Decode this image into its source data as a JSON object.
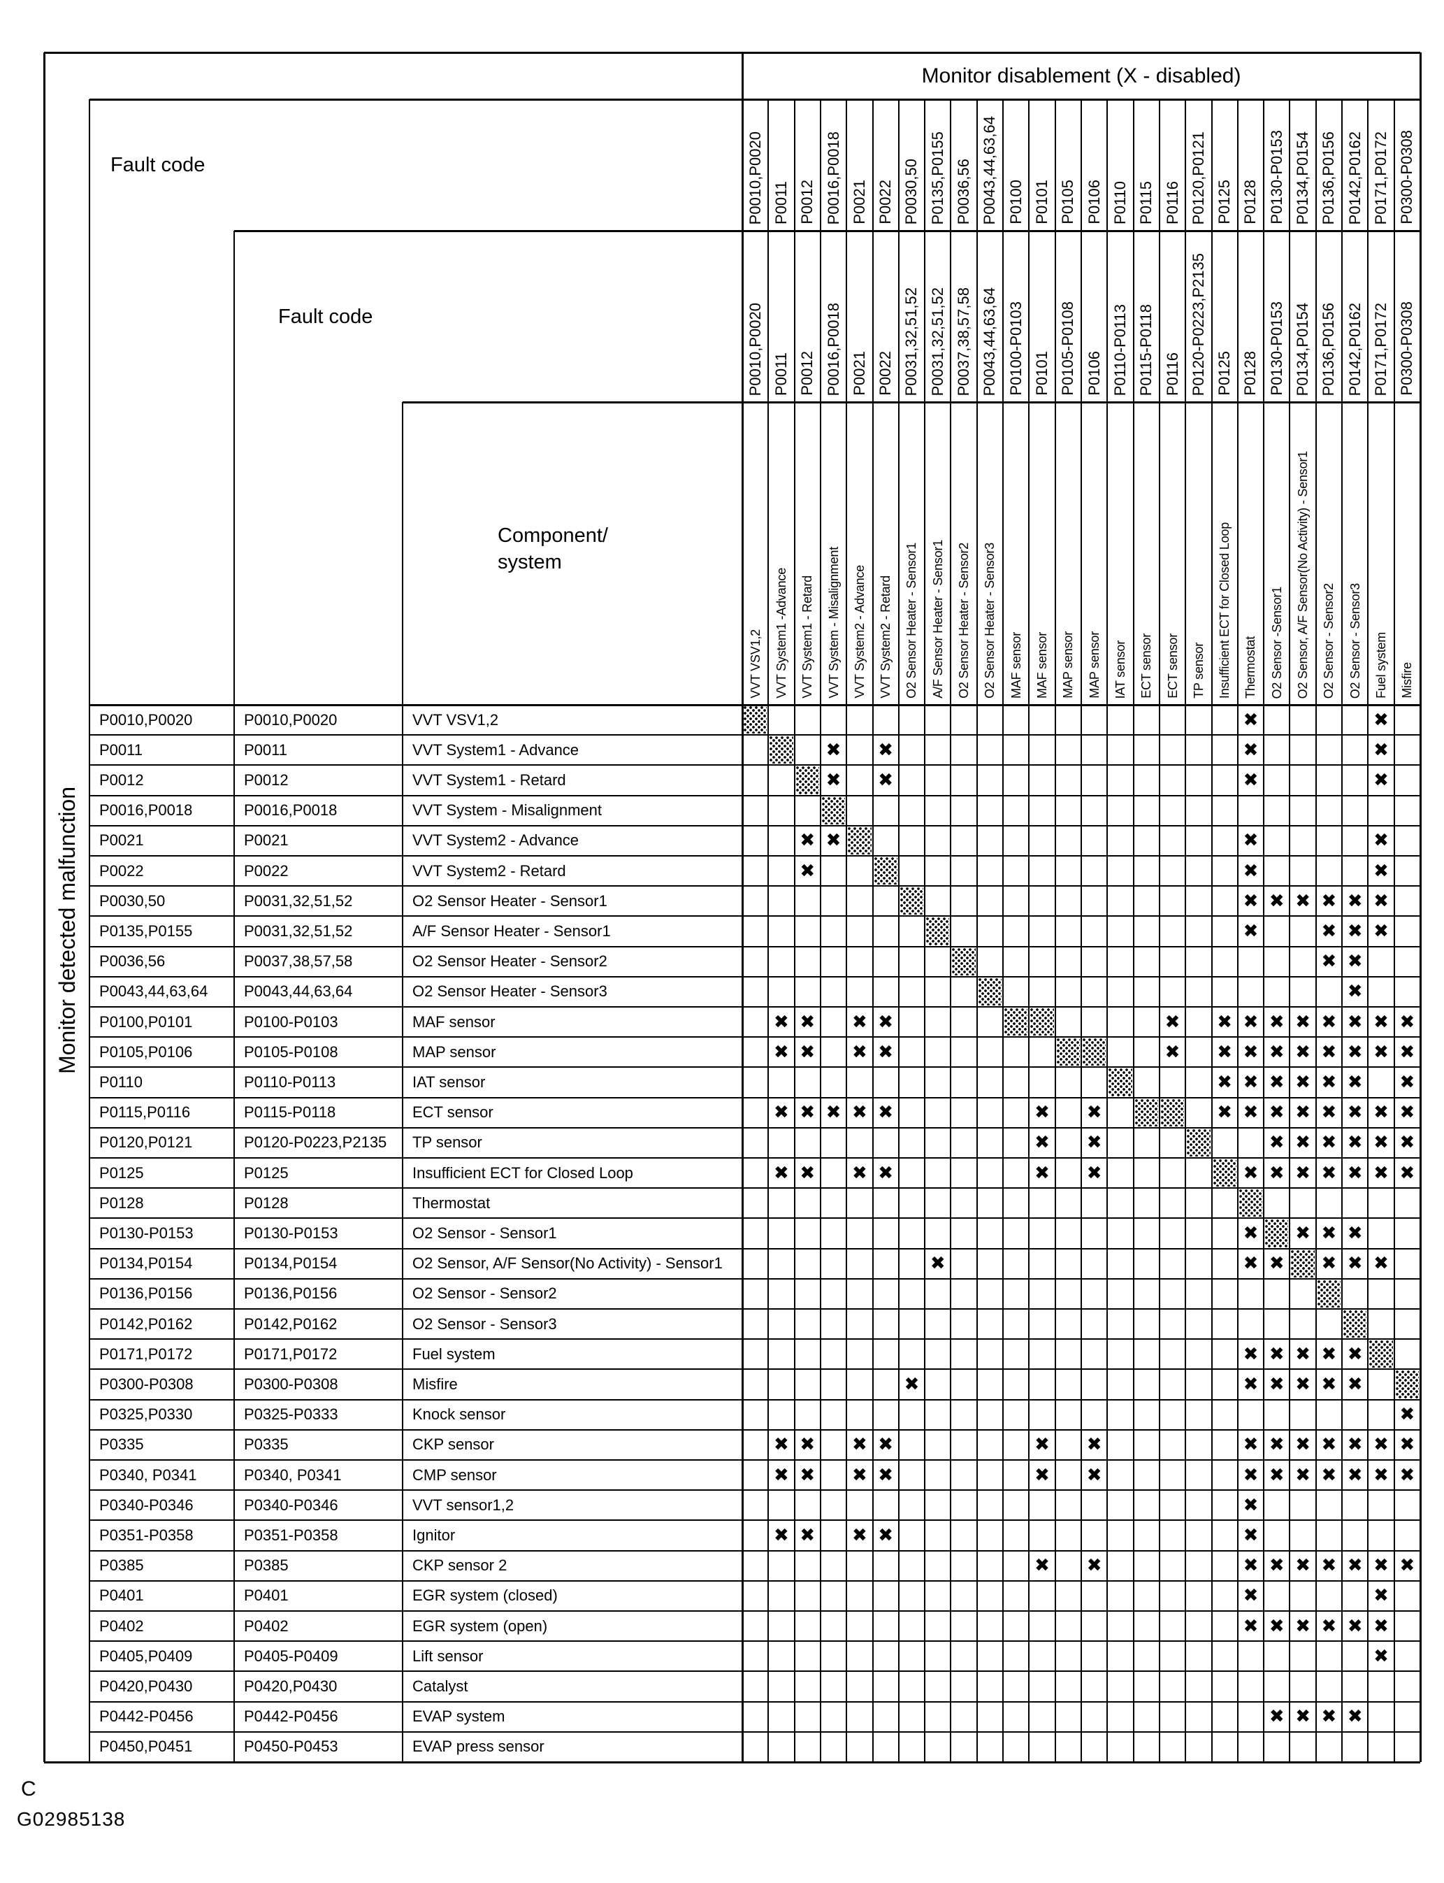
{
  "page": {
    "corner_label": "C",
    "figure_code": "G02985138",
    "background_color": "#ffffff",
    "ink_color": "#000000"
  },
  "table": {
    "title": "Monitor disablement (X - disabled)",
    "left_axis_label": "Monitor detected malfunction",
    "fault_code_label_outer": "Fault code",
    "fault_code_label_inner": "Fault code",
    "component_label_line1": "Component/",
    "component_label_line2": "system",
    "x_mark_glyph": "✖",
    "columns": [
      {
        "code_row1": "P0010,P0020",
        "code_row2": "P0010,P0020",
        "component": "VVT VSV1,2"
      },
      {
        "code_row1": "P0011",
        "code_row2": "P0011",
        "component": "VVT System1 -Advance"
      },
      {
        "code_row1": "P0012",
        "code_row2": "P0012",
        "component": "VVT System1 - Retard"
      },
      {
        "code_row1": "P0016,P0018",
        "code_row2": "P0016,P0018",
        "component": "VVT System - Misalignment"
      },
      {
        "code_row1": "P0021",
        "code_row2": "P0021",
        "component": "VVT System2 - Advance"
      },
      {
        "code_row1": "P0022",
        "code_row2": "P0022",
        "component": "VVT System2 - Retard"
      },
      {
        "code_row1": "P0030,50",
        "code_row2": "P0031,32,51,52",
        "component": "O2 Sensor  Heater - Sensor1"
      },
      {
        "code_row1": "P0135,P0155",
        "code_row2": "P0031,32,51,52",
        "component": "A/F Sensor Heater - Sensor1"
      },
      {
        "code_row1": "P0036,56",
        "code_row2": "P0037,38,57,58",
        "component": "O2 Sensor Heater - Sensor2"
      },
      {
        "code_row1": "P0043,44,63,64",
        "code_row2": "P0043,44,63,64",
        "component": "O2 Sensor Heater  - Sensor3"
      },
      {
        "code_row1": "P0100",
        "code_row2": "P0100-P0103",
        "component": "MAF sensor"
      },
      {
        "code_row1": "P0101",
        "code_row2": "P0101",
        "component": "MAF sensor"
      },
      {
        "code_row1": "P0105",
        "code_row2": "P0105-P0108",
        "component": "MAP sensor"
      },
      {
        "code_row1": "P0106",
        "code_row2": "P0106",
        "component": "MAP sensor"
      },
      {
        "code_row1": "P0110",
        "code_row2": "P0110-P0113",
        "component": "IAT sensor"
      },
      {
        "code_row1": "P0115",
        "code_row2": "P0115-P0118",
        "component": "ECT sensor"
      },
      {
        "code_row1": "P0116",
        "code_row2": "P0116",
        "component": "ECT sensor"
      },
      {
        "code_row1": "P0120,P0121",
        "code_row2": "P0120-P0223,P2135",
        "component": "TP sensor"
      },
      {
        "code_row1": "P0125",
        "code_row2": "P0125",
        "component": "Insufficient ECT for Closed Loop"
      },
      {
        "code_row1": "P0128",
        "code_row2": "P0128",
        "component": "Thermostat"
      },
      {
        "code_row1": "P0130-P0153",
        "code_row2": "P0130-P0153",
        "component": "O2 Sensor -Sensor1"
      },
      {
        "code_row1": "P0134,P0154",
        "code_row2": "P0134,P0154",
        "component": "O2 Sensor, A/F Sensor(No Activity) - Sensor1"
      },
      {
        "code_row1": "P0136,P0156",
        "code_row2": "P0136,P0156",
        "component": "O2 Sensor - Sensor2"
      },
      {
        "code_row1": "P0142,P0162",
        "code_row2": "P0142,P0162",
        "component": "O2 Sensor - Sensor3"
      },
      {
        "code_row1": "P0171,P0172",
        "code_row2": "P0171,P0172",
        "component": "Fuel system"
      },
      {
        "code_row1": "P0300-P0308",
        "code_row2": "P0300-P0308",
        "component": "Misfire"
      }
    ],
    "rows": [
      {
        "fault_code_1": "P0010,P0020",
        "fault_code_2": "P0010,P0020",
        "component": "VVT VSV1,2",
        "hatch_cols": [
          1
        ],
        "x_cols": [
          20,
          25
        ]
      },
      {
        "fault_code_1": "P0011",
        "fault_code_2": "P0011",
        "component": "VVT System1 - Advance",
        "hatch_cols": [
          2
        ],
        "x_cols": [
          4,
          6,
          20,
          25
        ]
      },
      {
        "fault_code_1": "P0012",
        "fault_code_2": "P0012",
        "component": "VVT System1 - Retard",
        "hatch_cols": [
          3
        ],
        "x_cols": [
          4,
          6,
          20,
          25
        ]
      },
      {
        "fault_code_1": "P0016,P0018",
        "fault_code_2": "P0016,P0018",
        "component": "VVT System - Misalignment",
        "hatch_cols": [
          4
        ],
        "x_cols": []
      },
      {
        "fault_code_1": "P0021",
        "fault_code_2": "P0021",
        "component": "VVT System2 - Advance",
        "hatch_cols": [
          5
        ],
        "x_cols": [
          3,
          4,
          20,
          25
        ]
      },
      {
        "fault_code_1": "P0022",
        "fault_code_2": "P0022",
        "component": "VVT System2 - Retard",
        "hatch_cols": [
          6
        ],
        "x_cols": [
          3,
          20,
          25
        ]
      },
      {
        "fault_code_1": "P0030,50",
        "fault_code_2": "P0031,32,51,52",
        "component": "O2 Sensor Heater - Sensor1",
        "hatch_cols": [
          7
        ],
        "x_cols": [
          20,
          21,
          22,
          23,
          24,
          25
        ]
      },
      {
        "fault_code_1": "P0135,P0155",
        "fault_code_2": "P0031,32,51,52",
        "component": "A/F Sensor Heater  - Sensor1",
        "hatch_cols": [
          8
        ],
        "x_cols": [
          20,
          23,
          24,
          25
        ]
      },
      {
        "fault_code_1": "P0036,56",
        "fault_code_2": "P0037,38,57,58",
        "component": "O2 Sensor Heater - Sensor2",
        "hatch_cols": [
          9
        ],
        "x_cols": [
          23,
          24
        ]
      },
      {
        "fault_code_1": "P0043,44,63,64",
        "fault_code_2": "P0043,44,63,64",
        "component": "O2 Sensor Heater - Sensor3",
        "hatch_cols": [
          10
        ],
        "x_cols": [
          24
        ]
      },
      {
        "fault_code_1": "P0100,P0101",
        "fault_code_2": "P0100-P0103",
        "component": "MAF sensor",
        "hatch_cols": [
          11,
          12
        ],
        "x_cols": [
          2,
          3,
          5,
          6,
          17,
          19,
          20,
          21,
          22,
          23,
          24,
          25,
          26
        ]
      },
      {
        "fault_code_1": "P0105,P0106",
        "fault_code_2": "P0105-P0108",
        "component": "MAP sensor",
        "hatch_cols": [
          13,
          14
        ],
        "x_cols": [
          2,
          3,
          5,
          6,
          17,
          19,
          20,
          21,
          22,
          23,
          24,
          25,
          26
        ]
      },
      {
        "fault_code_1": "P0110",
        "fault_code_2": "P0110-P0113",
        "component": "IAT sensor",
        "hatch_cols": [
          15
        ],
        "x_cols": [
          19,
          20,
          21,
          22,
          23,
          24,
          26
        ]
      },
      {
        "fault_code_1": "P0115,P0116",
        "fault_code_2": "P0115-P0118",
        "component": "ECT sensor",
        "hatch_cols": [
          16,
          17
        ],
        "x_cols": [
          2,
          3,
          4,
          5,
          6,
          12,
          14,
          19,
          20,
          21,
          22,
          23,
          24,
          25,
          26
        ]
      },
      {
        "fault_code_1": "P0120,P0121",
        "fault_code_2": "P0120-P0223,P2135",
        "component": "TP sensor",
        "hatch_cols": [
          18
        ],
        "x_cols": [
          12,
          14,
          21,
          22,
          23,
          24,
          25,
          26
        ]
      },
      {
        "fault_code_1": "P0125",
        "fault_code_2": "P0125",
        "component": "Insufficient ECT for Closed Loop",
        "hatch_cols": [
          19
        ],
        "x_cols": [
          2,
          3,
          5,
          6,
          12,
          14,
          20,
          21,
          22,
          23,
          24,
          25,
          26
        ]
      },
      {
        "fault_code_1": "P0128",
        "fault_code_2": "P0128",
        "component": "Thermostat",
        "hatch_cols": [
          20
        ],
        "x_cols": []
      },
      {
        "fault_code_1": "P0130-P0153",
        "fault_code_2": "P0130-P0153",
        "component": "O2 Sensor - Sensor1",
        "hatch_cols": [
          21
        ],
        "x_cols": [
          20,
          22,
          23,
          24
        ]
      },
      {
        "fault_code_1": "P0134,P0154",
        "fault_code_2": "P0134,P0154",
        "component": "O2 Sensor, A/F Sensor(No Activity) - Sensor1",
        "hatch_cols": [
          22
        ],
        "x_cols": [
          8,
          20,
          21,
          23,
          24,
          25
        ]
      },
      {
        "fault_code_1": "P0136,P0156",
        "fault_code_2": "P0136,P0156",
        "component": "O2 Sensor - Sensor2",
        "hatch_cols": [
          23
        ],
        "x_cols": []
      },
      {
        "fault_code_1": "P0142,P0162",
        "fault_code_2": "P0142,P0162",
        "component": "O2 Sensor - Sensor3",
        "hatch_cols": [
          24
        ],
        "x_cols": []
      },
      {
        "fault_code_1": "P0171,P0172",
        "fault_code_2": "P0171,P0172",
        "component": "Fuel system",
        "hatch_cols": [
          25
        ],
        "x_cols": [
          20,
          21,
          22,
          23,
          24
        ]
      },
      {
        "fault_code_1": "P0300-P0308",
        "fault_code_2": "P0300-P0308",
        "component": "Misfire",
        "hatch_cols": [
          26
        ],
        "x_cols": [
          7,
          20,
          21,
          22,
          23,
          24
        ]
      },
      {
        "fault_code_1": "P0325,P0330",
        "fault_code_2": "P0325-P0333",
        "component": "Knock sensor",
        "hatch_cols": [],
        "x_cols": [
          26
        ]
      },
      {
        "fault_code_1": "P0335",
        "fault_code_2": "P0335",
        "component": "CKP sensor",
        "hatch_cols": [],
        "x_cols": [
          2,
          3,
          5,
          6,
          12,
          14,
          20,
          21,
          22,
          23,
          24,
          25,
          26
        ]
      },
      {
        "fault_code_1": "P0340, P0341",
        "fault_code_2": "P0340, P0341",
        "component": "CMP sensor",
        "hatch_cols": [],
        "x_cols": [
          2,
          3,
          5,
          6,
          12,
          14,
          20,
          21,
          22,
          23,
          24,
          25,
          26
        ]
      },
      {
        "fault_code_1": "P0340-P0346",
        "fault_code_2": "P0340-P0346",
        "component": "VVT sensor1,2",
        "hatch_cols": [],
        "x_cols": [
          20
        ]
      },
      {
        "fault_code_1": "P0351-P0358",
        "fault_code_2": "P0351-P0358",
        "component": "Ignitor",
        "hatch_cols": [],
        "x_cols": [
          2,
          3,
          5,
          6,
          20
        ]
      },
      {
        "fault_code_1": "P0385",
        "fault_code_2": "P0385",
        "component": "CKP sensor 2",
        "hatch_cols": [],
        "x_cols": [
          12,
          14,
          20,
          21,
          22,
          23,
          24,
          25,
          26
        ]
      },
      {
        "fault_code_1": "P0401",
        "fault_code_2": "P0401",
        "component": "EGR system (closed)",
        "hatch_cols": [],
        "x_cols": [
          20,
          25
        ]
      },
      {
        "fault_code_1": "P0402",
        "fault_code_2": "P0402",
        "component": "EGR system (open)",
        "hatch_cols": [],
        "x_cols": [
          20,
          21,
          22,
          23,
          24,
          25
        ]
      },
      {
        "fault_code_1": "P0405,P0409",
        "fault_code_2": "P0405-P0409",
        "component": "Lift sensor",
        "hatch_cols": [],
        "x_cols": [
          25
        ]
      },
      {
        "fault_code_1": "P0420,P0430",
        "fault_code_2": "P0420,P0430",
        "component": "Catalyst",
        "hatch_cols": [],
        "x_cols": []
      },
      {
        "fault_code_1": "P0442-P0456",
        "fault_code_2": "P0442-P0456",
        "component": "EVAP system",
        "hatch_cols": [],
        "x_cols": [
          21,
          22,
          23,
          24
        ]
      },
      {
        "fault_code_1": "P0450,P0451",
        "fault_code_2": "P0450-P0453",
        "component": "EVAP press sensor",
        "hatch_cols": [],
        "x_cols": []
      }
    ]
  }
}
